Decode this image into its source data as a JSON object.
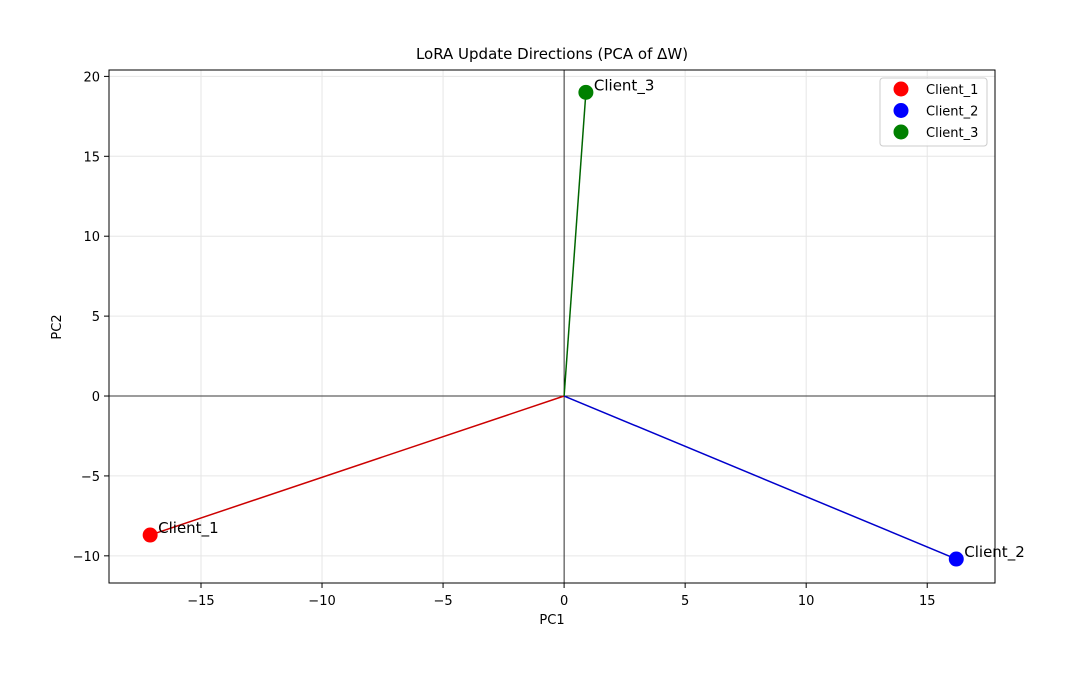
{
  "chart_data": {
    "type": "scatter",
    "title": "LoRA Update Directions (PCA of ΔW)",
    "xlabel": "PC1",
    "ylabel": "PC2",
    "xlim": [
      -18.8,
      17.8
    ],
    "ylim": [
      -11.7,
      20.4
    ],
    "xticks": [
      -15,
      -10,
      -5,
      0,
      5,
      10,
      15
    ],
    "yticks": [
      -10,
      -5,
      0,
      5,
      10,
      15,
      20
    ],
    "grid": true,
    "legend_position": "top-right",
    "origin": [
      0,
      0
    ],
    "series": [
      {
        "name": "Client_1",
        "color": "#ff0000",
        "line_color": "#cc0000",
        "x": -17.1,
        "y": -8.7,
        "label": "Client_1"
      },
      {
        "name": "Client_2",
        "color": "#0000ff",
        "line_color": "#0000cc",
        "x": 16.2,
        "y": -10.2,
        "label": "Client_2"
      },
      {
        "name": "Client_3",
        "color": "#008000",
        "line_color": "#006600",
        "x": 0.9,
        "y": 19.0,
        "label": "Client_3"
      }
    ]
  }
}
